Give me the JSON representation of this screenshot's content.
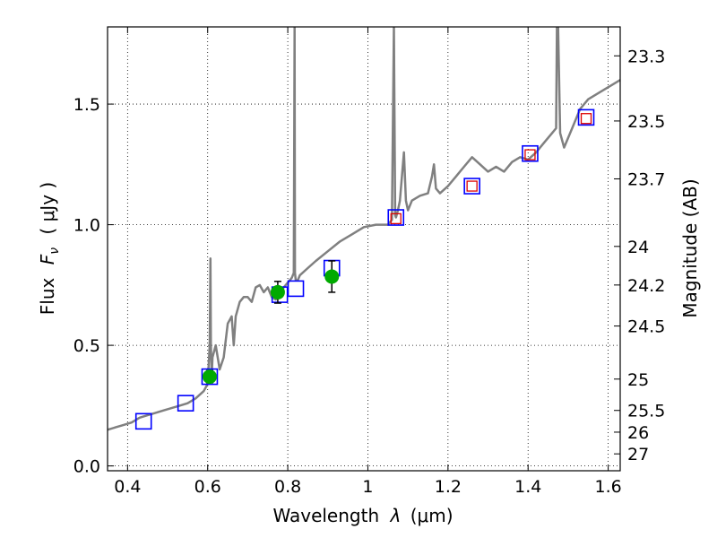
{
  "chart_data": {
    "type": "line",
    "xlabel": "Wavelength",
    "xlabel_symbol": "λ",
    "xlabel_unit": "(μm)",
    "ylabel": "Flux",
    "ylabel_symbol": "F",
    "ylabel_subscript": "ν",
    "ylabel_unit": "( μJy )",
    "y2label": "Magnitude (AB)",
    "xlim": [
      0.35,
      1.63
    ],
    "ylim": [
      -0.02,
      1.82
    ],
    "grid": true,
    "x_ticks": [
      0.4,
      0.6,
      0.8,
      1.0,
      1.2,
      1.4,
      1.6
    ],
    "x_tick_labels": [
      "0.4",
      "0.6",
      "0.8",
      "1",
      "1.2",
      "1.4",
      "1.6"
    ],
    "y_ticks": [
      0.0,
      0.5,
      1.0,
      1.5
    ],
    "y_tick_labels": [
      "0.0",
      "0.5",
      "1.0",
      "1.5"
    ],
    "y2_ticks": [
      {
        "label": "23.3",
        "flux": 1.7
      },
      {
        "label": "23.5",
        "flux": 1.43
      },
      {
        "label": "23.7",
        "flux": 1.19
      },
      {
        "label": "24",
        "flux": 0.91
      },
      {
        "label": "24.2",
        "flux": 0.75
      },
      {
        "label": "24.5",
        "flux": 0.58
      },
      {
        "label": "25",
        "flux": 0.36
      },
      {
        "label": "25.5",
        "flux": 0.23
      },
      {
        "label": "26",
        "flux": 0.14
      },
      {
        "label": "27",
        "flux": 0.05
      }
    ],
    "series": [
      {
        "kind": "model_spectrum",
        "color": "#808080",
        "x": [
          0.35,
          0.37,
          0.39,
          0.41,
          0.43,
          0.45,
          0.47,
          0.49,
          0.51,
          0.53,
          0.55,
          0.57,
          0.59,
          0.6,
          0.605,
          0.607,
          0.608,
          0.61,
          0.612,
          0.62,
          0.63,
          0.64,
          0.65,
          0.66,
          0.665,
          0.67,
          0.68,
          0.69,
          0.7,
          0.71,
          0.72,
          0.73,
          0.74,
          0.75,
          0.76,
          0.77,
          0.78,
          0.79,
          0.8,
          0.81,
          0.815,
          0.817,
          0.818,
          0.82,
          0.825,
          0.83,
          0.85,
          0.87,
          0.9,
          0.93,
          0.96,
          0.99,
          1.02,
          1.05,
          1.06,
          1.065,
          1.068,
          1.07,
          1.075,
          1.08,
          1.09,
          1.095,
          1.1,
          1.11,
          1.13,
          1.15,
          1.16,
          1.165,
          1.17,
          1.18,
          1.2,
          1.22,
          1.24,
          1.26,
          1.28,
          1.3,
          1.32,
          1.34,
          1.36,
          1.38,
          1.4,
          1.42,
          1.44,
          1.46,
          1.47,
          1.472,
          1.475,
          1.48,
          1.49,
          1.51,
          1.53,
          1.55,
          1.57,
          1.59,
          1.61,
          1.63
        ],
        "y": [
          0.15,
          0.16,
          0.17,
          0.18,
          0.2,
          0.21,
          0.22,
          0.23,
          0.24,
          0.25,
          0.26,
          0.28,
          0.31,
          0.34,
          0.5,
          0.86,
          0.5,
          0.37,
          0.45,
          0.5,
          0.4,
          0.45,
          0.59,
          0.62,
          0.5,
          0.62,
          0.68,
          0.7,
          0.7,
          0.68,
          0.74,
          0.75,
          0.72,
          0.74,
          0.7,
          0.69,
          0.72,
          0.74,
          0.76,
          0.78,
          0.8,
          1.82,
          0.8,
          0.77,
          0.77,
          0.79,
          0.82,
          0.85,
          0.89,
          0.93,
          0.96,
          0.99,
          1.0,
          1.0,
          1.02,
          1.82,
          1.04,
          1.03,
          1.06,
          1.1,
          1.3,
          1.1,
          1.06,
          1.1,
          1.12,
          1.13,
          1.2,
          1.25,
          1.15,
          1.13,
          1.16,
          1.2,
          1.24,
          1.28,
          1.25,
          1.22,
          1.24,
          1.22,
          1.26,
          1.28,
          1.27,
          1.3,
          1.34,
          1.38,
          1.4,
          1.82,
          1.82,
          1.38,
          1.32,
          1.4,
          1.48,
          1.52,
          1.54,
          1.56,
          1.58,
          1.6
        ]
      },
      {
        "kind": "model_photometry",
        "marker": "square",
        "color": "#0000ff",
        "x": [
          0.44,
          0.545,
          0.605,
          0.78,
          0.82,
          0.91,
          1.07,
          1.26,
          1.405,
          1.545
        ],
        "y": [
          0.185,
          0.26,
          0.37,
          0.71,
          0.735,
          0.82,
          1.03,
          1.16,
          1.295,
          1.445
        ]
      },
      {
        "kind": "synthetic_points",
        "marker": "square-small",
        "color": "#dd0000",
        "x": [
          1.07,
          1.26,
          1.405,
          1.545
        ],
        "y": [
          1.025,
          1.16,
          1.29,
          1.44
        ]
      },
      {
        "kind": "observed_points",
        "marker": "circle",
        "color": "#00aa00",
        "x": [
          0.605,
          0.775,
          0.91
        ],
        "y": [
          0.37,
          0.72,
          0.785
        ],
        "yerr": [
          0.025,
          0.045,
          0.065
        ]
      }
    ]
  }
}
